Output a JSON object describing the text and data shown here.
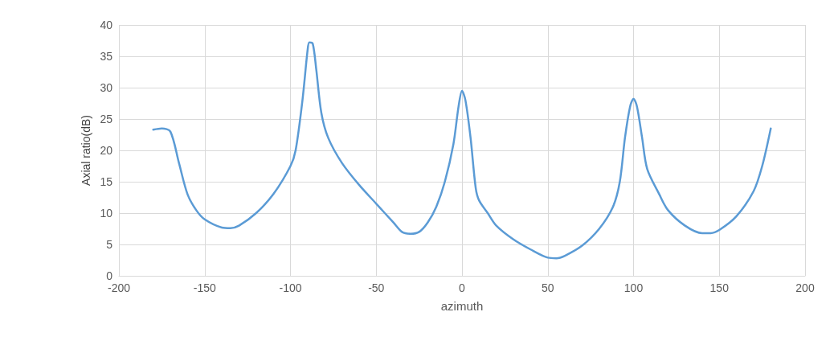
{
  "chart_data": {
    "type": "line",
    "xlabel": "azimuth",
    "ylabel": "Axial ratio(dB)",
    "x": [
      -180,
      -175,
      -170,
      -165,
      -160,
      -155,
      -150,
      -140,
      -135,
      -130,
      -120,
      -110,
      -100,
      -97,
      -93,
      -90,
      -89,
      -87,
      -85,
      -82,
      -78,
      -70,
      -60,
      -50,
      -40,
      -35,
      -30,
      -25,
      -20,
      -15,
      -10,
      -5,
      -2,
      0,
      2,
      5,
      8,
      10,
      15,
      20,
      30,
      40,
      50,
      55,
      60,
      70,
      80,
      88,
      92,
      95,
      98,
      100,
      102,
      105,
      108,
      115,
      120,
      130,
      140,
      145,
      150,
      160,
      170,
      175,
      180
    ],
    "series": [
      {
        "color": "#5b9bd5",
        "values": [
          23.3,
          23.5,
          23,
          18,
          13,
          10.5,
          9,
          7.7,
          7.6,
          8,
          10,
          13,
          17.5,
          20,
          28,
          36,
          37.2,
          37,
          33,
          26,
          22,
          18,
          14.5,
          11.5,
          8.5,
          7,
          6.7,
          7,
          8.5,
          11,
          15,
          21,
          27,
          29.5,
          28,
          22,
          14,
          12,
          10,
          8,
          5.8,
          4.2,
          2.9,
          2.8,
          3.2,
          4.8,
          7.5,
          11,
          15,
          22,
          27,
          28.2,
          27,
          22,
          17,
          13,
          10.5,
          8,
          6.8,
          6.8,
          7.3,
          9.5,
          13.5,
          17.5,
          23.5
        ]
      }
    ],
    "xlim": [
      -200,
      200
    ],
    "xticks": [
      -200,
      -150,
      -100,
      -50,
      0,
      50,
      100,
      150,
      200
    ],
    "ylim": [
      0,
      40
    ],
    "yticks": [
      0,
      5,
      10,
      15,
      20,
      25,
      30,
      35,
      40
    ],
    "grid": true,
    "marker": "none",
    "line_style": "solid"
  }
}
